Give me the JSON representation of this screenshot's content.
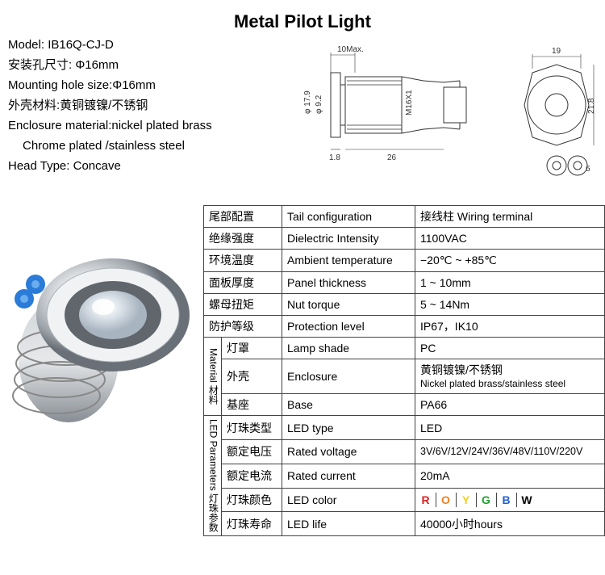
{
  "title": "Metal Pilot Light",
  "specs": {
    "model_label": "Model:",
    "model_value": "IB16Q-CJ-D",
    "hole_cn": "安装孔尺寸: Φ16mm",
    "hole_en": "Mounting hole size:Φ16mm",
    "encl_cn": "外壳材料:黄铜镀镍/不锈钢",
    "encl_en": "Enclosure material:nickel plated brass",
    "encl_en2": "Chrome plated /stainless steel",
    "head_en": "Head Type: Concave"
  },
  "drawing": {
    "d1": "10Max.",
    "d2": "φ 17.9",
    "d3": "φ 9.2",
    "d4": "1.8",
    "d5": "26",
    "d6": "19",
    "d7": "21.8",
    "d8": "6",
    "d9": "M16X1"
  },
  "table": {
    "header": {
      "cn": "尾部配置",
      "en": "Tail configuration",
      "val": "接线柱 Wiring terminal"
    },
    "rows": [
      {
        "cn": "绝缘强度",
        "en": "Dielectric Intensity",
        "val": "1100VAC"
      },
      {
        "cn": "环境温度",
        "en": "Ambient temperature",
        "val": "−20℃ ~ +85℃"
      },
      {
        "cn": "面板厚度",
        "en": "Panel thickness",
        "val": "1 ~ 10mm"
      },
      {
        "cn": "螺母扭矩",
        "en": "Nut torque",
        "val": "5 ~ 14Nm"
      },
      {
        "cn": "防护等级",
        "en": "Protection level",
        "val": "IP67，IK10"
      }
    ],
    "material": {
      "group_cn": "材料",
      "group_en": "Material",
      "rows": [
        {
          "cn": "灯罩",
          "en": "Lamp shade",
          "val": "PC"
        },
        {
          "cn": "外壳",
          "en": "Enclosure",
          "val_cn": "黄铜镀镍/不锈钢",
          "val_en": "Nickel plated brass/stainless steel"
        },
        {
          "cn": "基座",
          "en": "Base",
          "val": "PA66"
        }
      ]
    },
    "led": {
      "group_cn": "灯珠参数",
      "group_en": "LED Parameters",
      "rows": [
        {
          "cn": "灯珠类型",
          "en": "LED type",
          "val": "LED"
        },
        {
          "cn": "额定电压",
          "en": "Rated voltage",
          "val": "3V/6V/12V/24V/36V/48V/110V/220V"
        },
        {
          "cn": "额定电流",
          "en": "Rated current",
          "val": "20mA"
        },
        {
          "cn": "灯珠颜色",
          "en": "LED color",
          "colors": [
            {
              "l": "R",
              "c": "#e02020"
            },
            {
              "l": "O",
              "c": "#f08020"
            },
            {
              "l": "Y",
              "c": "#f0d020"
            },
            {
              "l": "G",
              "c": "#20a030"
            },
            {
              "l": "B",
              "c": "#2060d0"
            },
            {
              "l": "W",
              "c": "#000000"
            }
          ]
        },
        {
          "cn": "灯珠寿命",
          "en": "LED life",
          "val": "40000小时hours"
        }
      ]
    }
  },
  "colors": {
    "bg": "#ffffff",
    "text": "#000000",
    "border": "#444444",
    "metal_light": "#e8e8ea",
    "metal_mid": "#b8bcc0",
    "metal_dark": "#70747a",
    "screw_blue": "#2b7bd8"
  }
}
